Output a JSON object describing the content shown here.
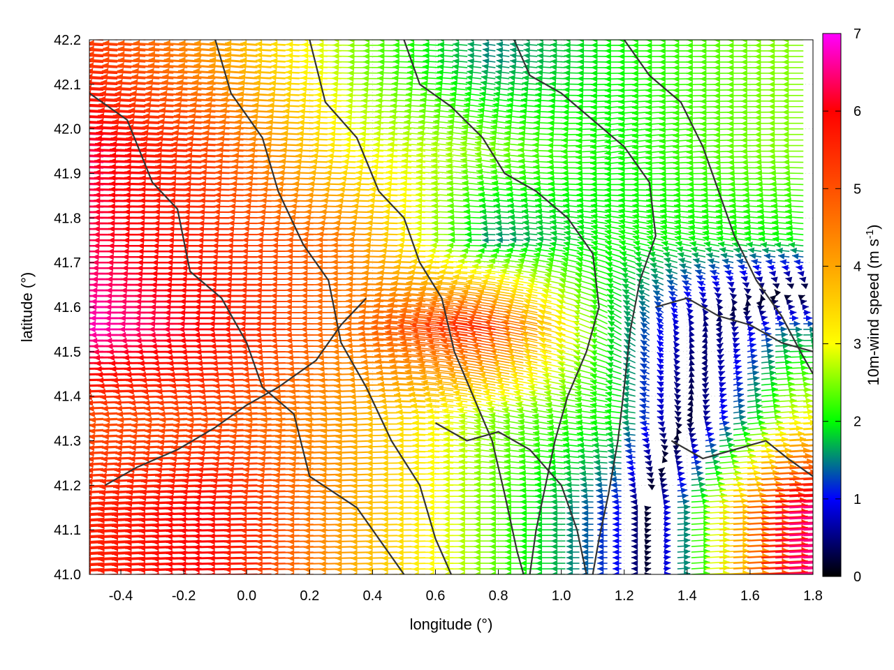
{
  "chart_data": {
    "type": "vector-field",
    "xlabel": "longitude (°)",
    "ylabel": "latitude (°)",
    "colorbar_label": "10m-wind speed (m s",
    "colorbar_label_exp": "-1",
    "colorbar_label_end": ")",
    "xlim": [
      -0.5,
      1.8
    ],
    "ylim": [
      41.0,
      42.2
    ],
    "x_ticks": [
      -0.4,
      -0.2,
      0.0,
      0.2,
      0.4,
      0.6,
      0.8,
      1.0,
      1.2,
      1.4,
      1.6,
      1.8
    ],
    "x_tick_labels": [
      "-0.4",
      "-0.2",
      "0.0",
      "0.2",
      "0.4",
      "0.6",
      "0.8",
      "1.0",
      "1.2",
      "1.4",
      "1.6",
      "1.8"
    ],
    "y_ticks": [
      41.0,
      41.1,
      41.2,
      41.3,
      41.4,
      41.5,
      41.6,
      41.7,
      41.8,
      41.9,
      42.0,
      42.1,
      42.2
    ],
    "y_tick_labels": [
      "41.0",
      "41.1",
      "41.2",
      "41.3",
      "41.4",
      "41.5",
      "41.6",
      "41.7",
      "41.8",
      "41.9",
      "42.0",
      "42.1",
      "42.2"
    ],
    "colorbar_range": [
      0,
      7
    ],
    "colorbar_ticks": [
      0,
      1,
      2,
      3,
      4,
      5,
      6,
      7
    ],
    "colorbar_tick_labels": [
      "0",
      "1",
      "2",
      "3",
      "4",
      "5",
      "6",
      "7"
    ],
    "colormap_stops": [
      {
        "value": 0,
        "color": "#000000"
      },
      {
        "value": 1,
        "color": "#0000ff"
      },
      {
        "value": 1.5,
        "color": "#008080"
      },
      {
        "value": 2,
        "color": "#00ff00"
      },
      {
        "value": 3,
        "color": "#ffff00"
      },
      {
        "value": 4,
        "color": "#ffa500"
      },
      {
        "value": 5,
        "color": "#ff5000"
      },
      {
        "value": 6,
        "color": "#ff0000"
      },
      {
        "value": 7,
        "color": "#ff00ff"
      }
    ],
    "grid": "dotted",
    "wind_vector_rows": [
      {
        "lat": 42.15,
        "lon_start": -0.5,
        "lon_end": 1.8,
        "samples": [
          {
            "lon": -0.45,
            "u": -5.5,
            "v": 0.3
          },
          {
            "lon": 0.0,
            "u": -4.0,
            "v": 0.3
          },
          {
            "lon": 0.4,
            "u": -2.5,
            "v": 0.0
          },
          {
            "lon": 0.8,
            "u": -1.5,
            "v": 0.2
          },
          {
            "lon": 1.2,
            "u": -2.0,
            "v": 0.0
          },
          {
            "lon": 1.7,
            "u": -2.5,
            "v": 0.0
          }
        ]
      },
      {
        "lat": 41.95,
        "lon_start": -0.5,
        "lon_end": 1.8,
        "samples": [
          {
            "lon": -0.45,
            "u": -6.5,
            "v": 0.2
          },
          {
            "lon": 0.0,
            "u": -5.0,
            "v": 0.2
          },
          {
            "lon": 0.4,
            "u": -3.0,
            "v": 0.1
          },
          {
            "lon": 0.8,
            "u": -2.5,
            "v": 0.4
          },
          {
            "lon": 1.2,
            "u": -2.0,
            "v": -0.3
          },
          {
            "lon": 1.7,
            "u": -2.5,
            "v": 0.0
          }
        ]
      },
      {
        "lat": 41.75,
        "lon_start": -0.5,
        "lon_end": 1.8,
        "samples": [
          {
            "lon": -0.45,
            "u": -6.5,
            "v": 0.0
          },
          {
            "lon": 0.0,
            "u": -5.5,
            "v": 0.0
          },
          {
            "lon": 0.4,
            "u": -4.5,
            "v": 0.1
          },
          {
            "lon": 0.8,
            "u": -1.5,
            "v": 0.0
          },
          {
            "lon": 1.2,
            "u": -2.0,
            "v": 0.5
          },
          {
            "lon": 1.7,
            "u": -2.0,
            "v": 0.2
          }
        ]
      },
      {
        "lat": 41.55,
        "lon_start": -0.5,
        "lon_end": 1.8,
        "samples": [
          {
            "lon": -0.45,
            "u": -7.0,
            "v": 0.0
          },
          {
            "lon": 0.0,
            "u": -6.0,
            "v": 0.0
          },
          {
            "lon": 0.4,
            "u": -4.5,
            "v": 0.0
          },
          {
            "lon": 0.8,
            "u": -5.5,
            "v": 0.9
          },
          {
            "lon": 1.2,
            "u": -1.5,
            "v": 1.0
          },
          {
            "lon": 1.7,
            "u": 1.5,
            "v": 0.0
          }
        ]
      },
      {
        "lat": 41.35,
        "lon_start": -0.5,
        "lon_end": 1.8,
        "samples": [
          {
            "lon": -0.45,
            "u": -5.0,
            "v": -0.2
          },
          {
            "lon": 0.0,
            "u": -5.0,
            "v": -0.2
          },
          {
            "lon": 0.4,
            "u": -4.0,
            "v": -0.2
          },
          {
            "lon": 0.8,
            "u": -2.5,
            "v": 0.5
          },
          {
            "lon": 1.2,
            "u": -2.0,
            "v": 0.2
          },
          {
            "lon": 1.7,
            "u": 3.0,
            "v": 0.2
          }
        ]
      },
      {
        "lat": 41.15,
        "lon_start": -0.5,
        "lon_end": 1.8,
        "samples": [
          {
            "lon": -0.45,
            "u": -5.5,
            "v": -0.3
          },
          {
            "lon": 0.0,
            "u": -6.0,
            "v": -0.1
          },
          {
            "lon": 0.4,
            "u": -4.0,
            "v": -0.1
          },
          {
            "lon": 0.8,
            "u": -2.5,
            "v": 0.0
          },
          {
            "lon": 1.2,
            "u": -1.0,
            "v": 0.0
          },
          {
            "lon": 1.7,
            "u": 6.5,
            "v": 0.3
          }
        ]
      }
    ],
    "contour_lines": [
      [
        [
          -0.5,
          42.08
        ],
        [
          -0.38,
          42.02
        ],
        [
          -0.3,
          41.88
        ],
        [
          -0.22,
          41.82
        ],
        [
          -0.18,
          41.68
        ],
        [
          -0.08,
          41.62
        ],
        [
          0.0,
          41.52
        ],
        [
          0.05,
          41.42
        ],
        [
          0.15,
          41.36
        ],
        [
          0.2,
          41.22
        ],
        [
          0.35,
          41.15
        ],
        [
          0.45,
          41.05
        ],
        [
          0.5,
          41.0
        ]
      ],
      [
        [
          -0.1,
          42.2
        ],
        [
          -0.05,
          42.08
        ],
        [
          0.05,
          41.98
        ],
        [
          0.1,
          41.86
        ],
        [
          0.18,
          41.74
        ],
        [
          0.26,
          41.66
        ],
        [
          0.3,
          41.52
        ],
        [
          0.38,
          41.42
        ],
        [
          0.46,
          41.3
        ],
        [
          0.55,
          41.2
        ],
        [
          0.6,
          41.08
        ],
        [
          0.65,
          41.0
        ]
      ],
      [
        [
          0.2,
          42.2
        ],
        [
          0.25,
          42.06
        ],
        [
          0.35,
          41.98
        ],
        [
          0.42,
          41.86
        ],
        [
          0.5,
          41.8
        ],
        [
          0.55,
          41.7
        ],
        [
          0.62,
          41.62
        ],
        [
          0.66,
          41.5
        ],
        [
          0.72,
          41.4
        ],
        [
          0.78,
          41.3
        ],
        [
          0.82,
          41.18
        ],
        [
          0.86,
          41.05
        ],
        [
          0.88,
          41.0
        ]
      ],
      [
        [
          0.5,
          42.2
        ],
        [
          0.55,
          42.1
        ],
        [
          0.65,
          42.05
        ],
        [
          0.75,
          41.98
        ],
        [
          0.82,
          41.9
        ],
        [
          0.92,
          41.86
        ],
        [
          1.02,
          41.8
        ],
        [
          1.1,
          41.72
        ],
        [
          1.12,
          41.6
        ],
        [
          1.08,
          41.5
        ],
        [
          1.02,
          41.4
        ],
        [
          0.98,
          41.3
        ],
        [
          0.95,
          41.2
        ],
        [
          0.92,
          41.1
        ],
        [
          0.9,
          41.0
        ]
      ],
      [
        [
          0.85,
          42.2
        ],
        [
          0.9,
          42.12
        ],
        [
          1.0,
          42.08
        ],
        [
          1.1,
          42.02
        ],
        [
          1.2,
          41.96
        ],
        [
          1.28,
          41.88
        ],
        [
          1.3,
          41.76
        ],
        [
          1.25,
          41.66
        ],
        [
          1.22,
          41.55
        ],
        [
          1.2,
          41.42
        ],
        [
          1.18,
          41.3
        ],
        [
          1.15,
          41.18
        ],
        [
          1.12,
          41.08
        ],
        [
          1.1,
          41.0
        ]
      ],
      [
        [
          1.2,
          42.2
        ],
        [
          1.28,
          42.12
        ],
        [
          1.38,
          42.06
        ],
        [
          1.45,
          41.96
        ],
        [
          1.5,
          41.86
        ],
        [
          1.55,
          41.76
        ],
        [
          1.62,
          41.66
        ],
        [
          1.7,
          41.58
        ],
        [
          1.76,
          41.5
        ],
        [
          1.8,
          41.45
        ]
      ],
      [
        [
          -0.45,
          41.2
        ],
        [
          -0.35,
          41.24
        ],
        [
          -0.22,
          41.28
        ],
        [
          -0.1,
          41.33
        ],
        [
          0.0,
          41.38
        ],
        [
          0.1,
          41.42
        ],
        [
          0.22,
          41.48
        ],
        [
          0.3,
          41.56
        ],
        [
          0.38,
          41.62
        ]
      ],
      [
        [
          0.6,
          41.34
        ],
        [
          0.7,
          41.3
        ],
        [
          0.8,
          41.32
        ],
        [
          0.9,
          41.28
        ],
        [
          1.0,
          41.2
        ],
        [
          1.05,
          41.1
        ],
        [
          1.08,
          41.0
        ]
      ],
      [
        [
          1.3,
          41.6
        ],
        [
          1.4,
          41.62
        ],
        [
          1.5,
          41.58
        ],
        [
          1.6,
          41.56
        ],
        [
          1.7,
          41.52
        ],
        [
          1.8,
          41.5
        ]
      ],
      [
        [
          1.35,
          41.3
        ],
        [
          1.45,
          41.26
        ],
        [
          1.55,
          41.28
        ],
        [
          1.65,
          41.3
        ],
        [
          1.72,
          41.26
        ],
        [
          1.8,
          41.22
        ]
      ]
    ]
  }
}
